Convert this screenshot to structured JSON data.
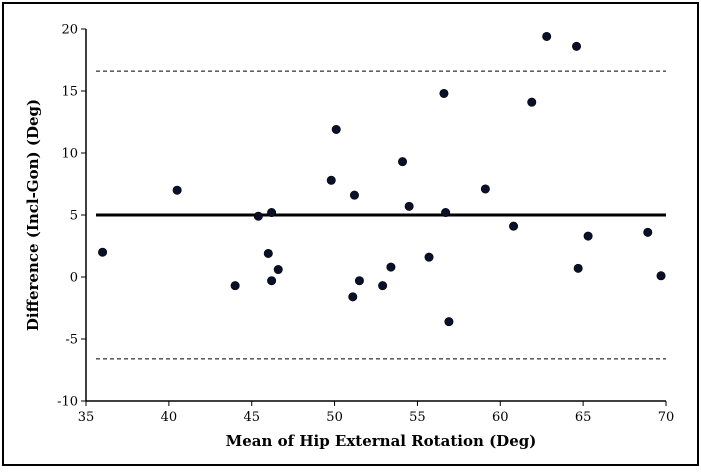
{
  "chart_data": {
    "type": "scatter",
    "title": "",
    "xlabel": "Mean of Hip External Rotation (Deg)",
    "ylabel": "Difference (Incl-Gon) (Deg)",
    "xlim": [
      35,
      70
    ],
    "ylim": [
      -10,
      20
    ],
    "xticks": [
      35,
      40,
      45,
      50,
      55,
      60,
      65,
      70
    ],
    "yticks": [
      -10,
      -5,
      0,
      5,
      10,
      15,
      20
    ],
    "xtick_labels": [
      "35",
      "40",
      "45",
      "50",
      "55",
      "60",
      "65",
      "70"
    ],
    "ytick_labels": [
      "-10",
      "-5",
      "0",
      "5",
      "10",
      "15",
      "20"
    ],
    "grid": false,
    "reference_lines": [
      {
        "kind": "mean",
        "y": 5.0,
        "style": "solid"
      },
      {
        "kind": "upper-limit",
        "y": 16.6,
        "style": "dashed"
      },
      {
        "kind": "lower-limit",
        "y": -6.6,
        "style": "dashed"
      }
    ],
    "points": [
      {
        "x": 36.0,
        "y": 2.0
      },
      {
        "x": 40.5,
        "y": 7.0
      },
      {
        "x": 44.0,
        "y": -0.7
      },
      {
        "x": 45.4,
        "y": 4.9
      },
      {
        "x": 46.0,
        "y": 1.9
      },
      {
        "x": 46.2,
        "y": 5.2
      },
      {
        "x": 46.2,
        "y": -0.3
      },
      {
        "x": 46.6,
        "y": 0.6
      },
      {
        "x": 49.8,
        "y": 7.8
      },
      {
        "x": 50.1,
        "y": 11.9
      },
      {
        "x": 51.1,
        "y": -1.6
      },
      {
        "x": 51.2,
        "y": 6.6
      },
      {
        "x": 51.5,
        "y": -0.3
      },
      {
        "x": 52.9,
        "y": -0.7
      },
      {
        "x": 53.4,
        "y": 0.8
      },
      {
        "x": 54.1,
        "y": 9.3
      },
      {
        "x": 54.5,
        "y": 5.7
      },
      {
        "x": 55.7,
        "y": 1.6
      },
      {
        "x": 56.6,
        "y": 14.8
      },
      {
        "x": 56.7,
        "y": 5.2
      },
      {
        "x": 56.9,
        "y": -3.6
      },
      {
        "x": 59.1,
        "y": 7.1
      },
      {
        "x": 60.8,
        "y": 4.1
      },
      {
        "x": 61.9,
        "y": 14.1
      },
      {
        "x": 62.8,
        "y": 19.4
      },
      {
        "x": 64.6,
        "y": 18.6
      },
      {
        "x": 64.7,
        "y": 0.7
      },
      {
        "x": 65.3,
        "y": 3.3
      },
      {
        "x": 68.9,
        "y": 3.6
      },
      {
        "x": 69.7,
        "y": 0.1
      }
    ]
  }
}
